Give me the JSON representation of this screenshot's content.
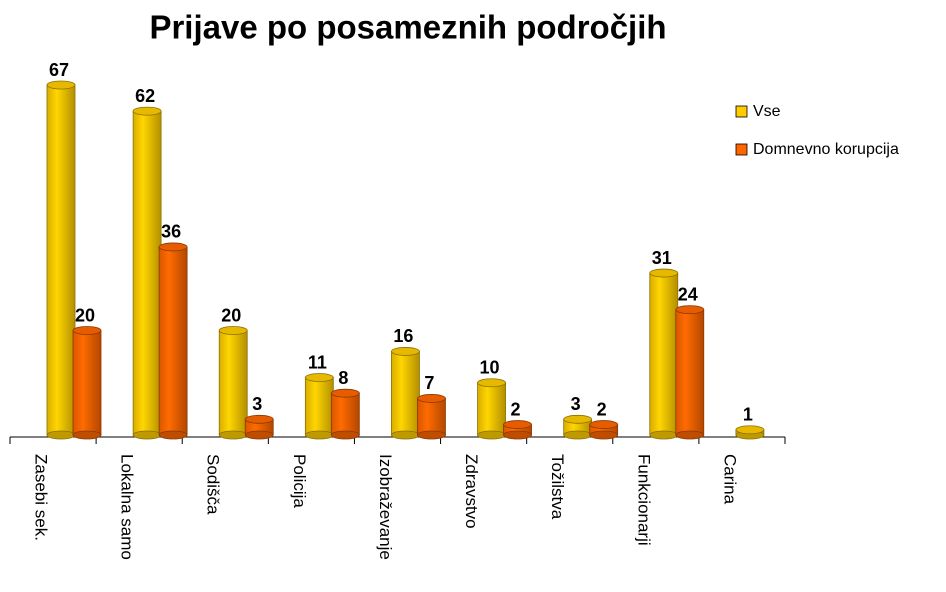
{
  "chart_data": {
    "type": "bar",
    "title": "Prijave po posameznih področjih",
    "categories": [
      "Zasebi sek.",
      "Lokalna samo",
      "Sodišča",
      "Policija",
      "Izobraževanje",
      "Zdravstvo",
      "Tožilstva",
      "Funkcionarji",
      "Carina"
    ],
    "series": [
      {
        "name": "Vse",
        "color": "#ffcc00",
        "values": [
          67,
          62,
          20,
          11,
          16,
          10,
          3,
          31,
          1
        ]
      },
      {
        "name": "Domnevno korupcija",
        "color": "#ff6600",
        "values": [
          20,
          36,
          3,
          8,
          7,
          2,
          2,
          24,
          null
        ]
      }
    ],
    "legend": "right"
  }
}
